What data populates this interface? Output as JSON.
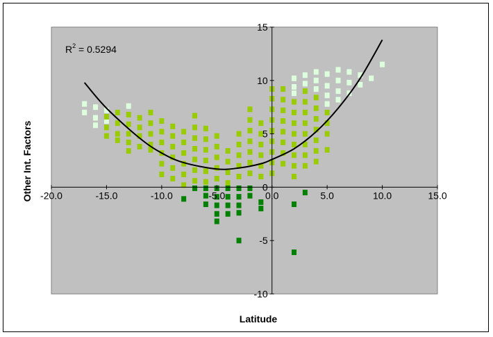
{
  "chart_data": {
    "type": "scatter",
    "title": "",
    "xlabel": "Latitude",
    "ylabel": "Other Int. Factors",
    "xlim": [
      -20,
      15
    ],
    "ylim": [
      -10,
      15
    ],
    "x_ticks": [
      "-20.0",
      "-15.0",
      "-10.0",
      "-5.0",
      "0.0",
      "5.0",
      "10.0",
      "15.0"
    ],
    "y_ticks": [
      "15",
      "10",
      "5",
      "0",
      "-5",
      "-10"
    ],
    "grid": false,
    "legend": "none",
    "annotation": {
      "r2_label": "R",
      "r2_exp": "2",
      "r2_text": " = 0.5294"
    },
    "colors": {
      "plot_background": "#c0c0c0",
      "trendline": "#000000",
      "pale": "#ddffdd",
      "light": "#99cc00",
      "dark": "#008000"
    },
    "trendline": {
      "type": "polynomial-2",
      "points": [
        [
          -17,
          9.8
        ],
        [
          -15,
          7.4
        ],
        [
          -12,
          4.6
        ],
        [
          -10,
          3.2
        ],
        [
          -8,
          2.3
        ],
        [
          -5,
          1.7
        ],
        [
          -3,
          1.8
        ],
        [
          -1,
          2.2
        ],
        [
          0,
          2.6
        ],
        [
          2,
          3.6
        ],
        [
          4,
          5.2
        ],
        [
          6,
          7.4
        ],
        [
          8,
          10.2
        ],
        [
          10,
          13.8
        ]
      ]
    },
    "series": [
      {
        "group": "pale",
        "points": [
          [
            -17,
            7.8
          ],
          [
            -17,
            7.0
          ],
          [
            -16,
            7.5
          ],
          [
            -16,
            6.5
          ],
          [
            -16,
            5.8
          ],
          [
            -15,
            7.2
          ],
          [
            -15,
            6.2
          ],
          [
            -13,
            7.6
          ],
          [
            2,
            10.2
          ],
          [
            2,
            9.4
          ],
          [
            2,
            8.8
          ],
          [
            3,
            10.5
          ],
          [
            3,
            9.7
          ],
          [
            4,
            10.8
          ],
          [
            4,
            10.0
          ],
          [
            4,
            9.2
          ],
          [
            5,
            10.6
          ],
          [
            5,
            9.5
          ],
          [
            5,
            8.6
          ],
          [
            5,
            7.8
          ],
          [
            6,
            11.0
          ],
          [
            6,
            10.0
          ],
          [
            6,
            9.0
          ],
          [
            6,
            8.2
          ],
          [
            7,
            10.8
          ],
          [
            7,
            9.8
          ],
          [
            7,
            8.8
          ],
          [
            8,
            10.5
          ],
          [
            8,
            9.6
          ],
          [
            9,
            10.2
          ],
          [
            10,
            11.5
          ]
        ]
      },
      {
        "group": "light",
        "points": [
          [
            -15,
            6.6
          ],
          [
            -15,
            5.6
          ],
          [
            -15,
            4.8
          ],
          [
            -14,
            7.0
          ],
          [
            -14,
            6.0
          ],
          [
            -14,
            5.0
          ],
          [
            -14,
            4.4
          ],
          [
            -13,
            6.8
          ],
          [
            -13,
            5.9
          ],
          [
            -13,
            5.0
          ],
          [
            -13,
            4.2
          ],
          [
            -13,
            3.4
          ],
          [
            -12,
            6.5
          ],
          [
            -12,
            5.6
          ],
          [
            -12,
            4.8
          ],
          [
            -12,
            3.8
          ],
          [
            -11,
            7.0
          ],
          [
            -11,
            6.0
          ],
          [
            -11,
            5.0
          ],
          [
            -11,
            4.0
          ],
          [
            -11,
            3.5
          ],
          [
            -10,
            6.2
          ],
          [
            -10,
            5.2
          ],
          [
            -10,
            4.2
          ],
          [
            -10,
            3.2
          ],
          [
            -10,
            2.2
          ],
          [
            -10,
            1.2
          ],
          [
            -9,
            5.7
          ],
          [
            -9,
            4.8
          ],
          [
            -9,
            3.8
          ],
          [
            -9,
            2.8
          ],
          [
            -9,
            1.8
          ],
          [
            -9,
            0.8
          ],
          [
            -8,
            5.2
          ],
          [
            -8,
            4.2
          ],
          [
            -8,
            3.2
          ],
          [
            -8,
            2.2
          ],
          [
            -8,
            1.2
          ],
          [
            -8,
            0.2
          ],
          [
            -7,
            6.7
          ],
          [
            -7,
            5.6
          ],
          [
            -7,
            4.6
          ],
          [
            -7,
            3.6
          ],
          [
            -7,
            2.6
          ],
          [
            -7,
            1.6
          ],
          [
            -7,
            0.6
          ],
          [
            -6,
            5.5
          ],
          [
            -6,
            4.5
          ],
          [
            -6,
            3.5
          ],
          [
            -6,
            2.5
          ],
          [
            -6,
            1.5
          ],
          [
            -6,
            0.5
          ],
          [
            -5,
            4.8
          ],
          [
            -5,
            3.8
          ],
          [
            -5,
            2.8
          ],
          [
            -5,
            1.8
          ],
          [
            -5,
            0.8
          ],
          [
            -4,
            3.4
          ],
          [
            -4,
            2.4
          ],
          [
            -4,
            1.4
          ],
          [
            -4,
            0.4
          ],
          [
            -3,
            5.0
          ],
          [
            -3,
            4.0
          ],
          [
            -3,
            3.0
          ],
          [
            -3,
            2.0
          ],
          [
            -3,
            1.0
          ],
          [
            -2,
            7.3
          ],
          [
            -2,
            6.3
          ],
          [
            -2,
            5.3
          ],
          [
            -2,
            4.3
          ],
          [
            -2,
            3.3
          ],
          [
            -2,
            2.3
          ],
          [
            -2,
            1.3
          ],
          [
            -1,
            6.0
          ],
          [
            -1,
            5.0
          ],
          [
            -1,
            4.0
          ],
          [
            -1,
            3.0
          ],
          [
            -1,
            2.0
          ],
          [
            -1,
            1.0
          ],
          [
            0,
            9.2
          ],
          [
            0,
            8.3
          ],
          [
            0,
            7.3
          ],
          [
            0,
            6.3
          ],
          [
            0,
            5.3
          ],
          [
            0,
            4.3
          ],
          [
            0,
            3.3
          ],
          [
            0,
            2.3
          ],
          [
            0,
            1.3
          ],
          [
            1,
            9.2
          ],
          [
            1,
            8.2
          ],
          [
            1,
            7.2
          ],
          [
            1,
            6.2
          ],
          [
            1,
            5.2
          ],
          [
            1,
            4.2
          ],
          [
            1,
            3.2
          ],
          [
            1,
            2.2
          ],
          [
            2,
            8.0
          ],
          [
            2,
            7.0
          ],
          [
            2,
            6.0
          ],
          [
            2,
            5.0
          ],
          [
            2,
            4.0
          ],
          [
            2,
            3.0
          ],
          [
            2,
            2.0
          ],
          [
            2,
            1.0
          ],
          [
            3,
            9.0
          ],
          [
            3,
            8.0
          ],
          [
            3,
            7.0
          ],
          [
            3,
            6.0
          ],
          [
            3,
            5.0
          ],
          [
            3,
            4.0
          ],
          [
            3,
            3.0
          ],
          [
            3,
            2.0
          ],
          [
            4,
            8.4
          ],
          [
            4,
            7.4
          ],
          [
            4,
            6.4
          ],
          [
            4,
            5.4
          ],
          [
            4,
            4.4
          ],
          [
            4,
            3.4
          ],
          [
            4,
            2.4
          ],
          [
            5,
            7.0
          ],
          [
            5,
            6.0
          ],
          [
            5,
            5.0
          ],
          [
            5,
            3.5
          ]
        ]
      },
      {
        "group": "dark",
        "points": [
          [
            -8,
            -1.1
          ],
          [
            -7,
            -0.1
          ],
          [
            -6,
            -0.1
          ],
          [
            -6,
            -0.8
          ],
          [
            -6,
            -1.6
          ],
          [
            -5,
            -0.1
          ],
          [
            -5,
            -0.9
          ],
          [
            -5,
            -1.7
          ],
          [
            -5,
            -2.5
          ],
          [
            -5,
            -3.2
          ],
          [
            -4,
            -0.1
          ],
          [
            -4,
            -0.9
          ],
          [
            -4,
            -1.7
          ],
          [
            -4,
            -2.5
          ],
          [
            -3,
            -0.1
          ],
          [
            -3,
            -0.9
          ],
          [
            -3,
            -1.7
          ],
          [
            -3,
            -2.4
          ],
          [
            -3,
            -5.0
          ],
          [
            -2,
            -0.1
          ],
          [
            -2,
            -0.8
          ],
          [
            -1,
            -1.4
          ],
          [
            -1,
            -2.0
          ],
          [
            2,
            -1.6
          ],
          [
            2,
            -6.1
          ],
          [
            3,
            -0.5
          ]
        ]
      }
    ]
  }
}
